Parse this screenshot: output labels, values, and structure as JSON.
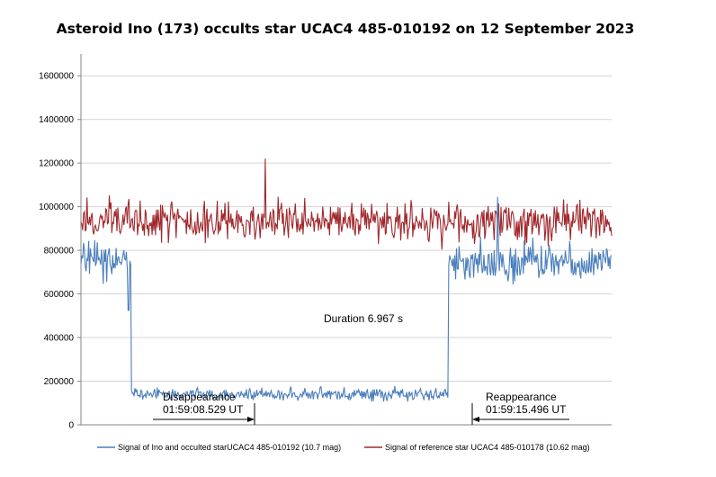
{
  "chart_data": {
    "type": "line",
    "title": "Asteroid Ino (173) occults star UCAC4 485-010192 on 12 September 2023",
    "xlabel": "",
    "ylabel": "",
    "ylim": [
      0,
      1700000
    ],
    "yticks": [
      0,
      200000,
      400000,
      600000,
      800000,
      1000000,
      1200000,
      1400000,
      1600000
    ],
    "y_tick_labels": [
      "0",
      "200000",
      "400000",
      "600000",
      "800000",
      "1000000",
      "1200000",
      "1400000",
      "1600000"
    ],
    "xlim": [
      -1.1,
      10.55
    ],
    "grid": "horizontal",
    "legend_position": "bottom",
    "annotations": {
      "duration": "Duration 6.967 s",
      "disappearance_label": "Disappearance",
      "disappearance_time": "01:59:08.529 UT",
      "reappearance_label": "Reappearance",
      "reappearance_time": "01:59:15.496 UT"
    },
    "series": [
      {
        "name": "Signal of Ino and occulted starUCAC4 485-010192 (10.7 mag)",
        "color": "#4a7ebb",
        "segments": [
          {
            "t_start": -1.1,
            "t_end": 0.0,
            "mean": 760000,
            "amplitude": 85000
          },
          {
            "t_start": 0.0,
            "t_end": 6.967,
            "mean": 140000,
            "amplitude": 25000
          },
          {
            "t_start": 6.967,
            "t_end": 10.55,
            "mean": 745000,
            "amplitude": 80000
          }
        ],
        "minima": [
          {
            "t": -0.05,
            "y": 525000
          }
        ],
        "peaks": [
          {
            "t": 8.05,
            "y": 1045000
          }
        ]
      },
      {
        "name": "Signal of reference star UCAC4 485-010178 (10.62 mag)",
        "color": "#a0282d",
        "mean": 930000,
        "amplitude": 90000,
        "peaks": [
          {
            "t": 2.95,
            "y": 1220000
          }
        ]
      }
    ]
  }
}
